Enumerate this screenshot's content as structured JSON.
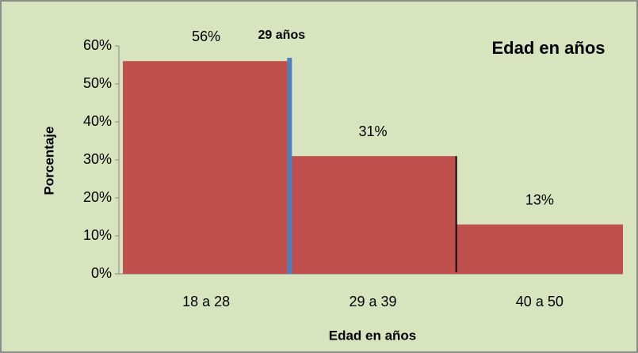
{
  "chart_data": {
    "type": "bar",
    "title": "Edad en años",
    "x_label": "Edad en años",
    "y_label": "Porcentaje",
    "annotation": "29 años",
    "categories": [
      "18 a 28",
      "29 a 39",
      "40 a 50"
    ],
    "values": [
      56,
      31,
      13
    ],
    "value_labels": [
      "56%",
      "31%",
      "13%"
    ],
    "color": "#c0504d",
    "ylim": [
      0,
      60
    ],
    "yticks": [
      {
        "value": 0,
        "label": "0%"
      },
      {
        "value": 10,
        "label": "10%"
      },
      {
        "value": 20,
        "label": "20%"
      },
      {
        "value": 30,
        "label": "30%"
      },
      {
        "value": 40,
        "label": "40%"
      },
      {
        "value": 50,
        "label": "50%"
      },
      {
        "value": 60,
        "label": "60%"
      }
    ],
    "grid": false
  }
}
